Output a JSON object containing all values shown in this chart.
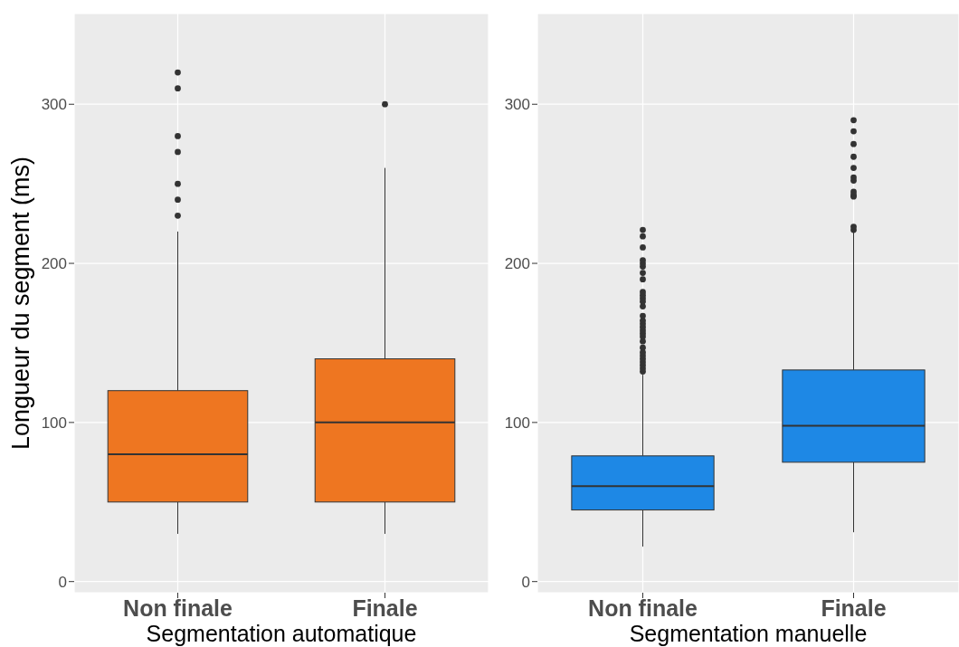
{
  "chart_data": [
    {
      "type": "box",
      "categories": [
        "Non finale",
        "Finale"
      ],
      "xlabel": "Segmentation automatique",
      "ylabel": "Longueur du segment (ms)",
      "color": "#ee7621",
      "ylim": [
        -7,
        357
      ],
      "yticks": [
        0,
        100,
        200,
        300
      ],
      "grid": true,
      "boxes": [
        {
          "low": 30,
          "q1": 50,
          "median": 80,
          "q3": 120,
          "high": 220,
          "outliers": [
            230,
            240,
            250,
            270,
            280,
            310,
            320
          ]
        },
        {
          "low": 30,
          "q1": 50,
          "median": 100,
          "q3": 140,
          "high": 260,
          "outliers": [
            300
          ]
        }
      ]
    },
    {
      "type": "box",
      "categories": [
        "Non finale",
        "Finale"
      ],
      "xlabel": "Segmentation manuelle",
      "color": "#1e88e5",
      "ylim": [
        -7,
        357
      ],
      "yticks": [
        0,
        100,
        200,
        300
      ],
      "grid": true,
      "boxes": [
        {
          "low": 22,
          "q1": 45,
          "median": 60,
          "q3": 79,
          "high": 130,
          "outliers": [
            132,
            134,
            136,
            138,
            140,
            142,
            144,
            147,
            151,
            154,
            156,
            158,
            160,
            162,
            164,
            167,
            173,
            176,
            178,
            180,
            182,
            190,
            194,
            198,
            200,
            202,
            210,
            217,
            221
          ]
        },
        {
          "low": 31,
          "q1": 75,
          "median": 98,
          "q3": 133,
          "high": 220,
          "outliers": [
            221,
            223,
            242,
            243,
            245,
            252,
            254,
            260,
            267,
            275,
            283,
            290
          ]
        }
      ]
    }
  ]
}
